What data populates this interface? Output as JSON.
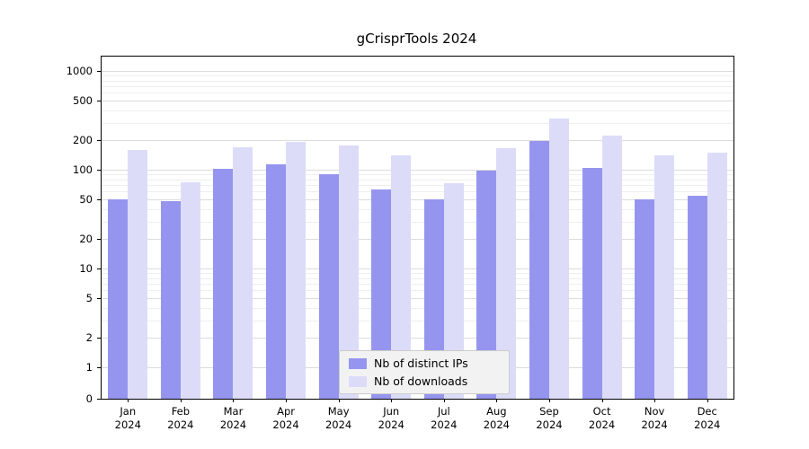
{
  "chart_data": {
    "type": "bar",
    "title": "gCrisprTools 2024",
    "scale": "log",
    "categories": [
      "Jan",
      "Feb",
      "Mar",
      "Apr",
      "May",
      "Jun",
      "Jul",
      "Aug",
      "Sep",
      "Oct",
      "Nov",
      "Dec"
    ],
    "category_subline": "2024",
    "series": [
      {
        "key": "distinct-ips",
        "name": "Nb of distinct IPs",
        "color": "#9595ef",
        "values": [
          50,
          48,
          102,
          113,
          90,
          63,
          50,
          98,
          195,
          105,
          50,
          54
        ]
      },
      {
        "key": "downloads",
        "name": "Nb of downloads",
        "color": "#dcdcf9",
        "values": [
          160,
          75,
          170,
          190,
          175,
          140,
          73,
          165,
          330,
          220,
          140,
          150
        ]
      }
    ],
    "yticks": [
      0,
      1,
      2,
      5,
      10,
      20,
      50,
      100,
      200,
      500,
      1000
    ],
    "ylim": [
      0,
      1400
    ],
    "grid": true,
    "legend_position": "bottom-center"
  }
}
